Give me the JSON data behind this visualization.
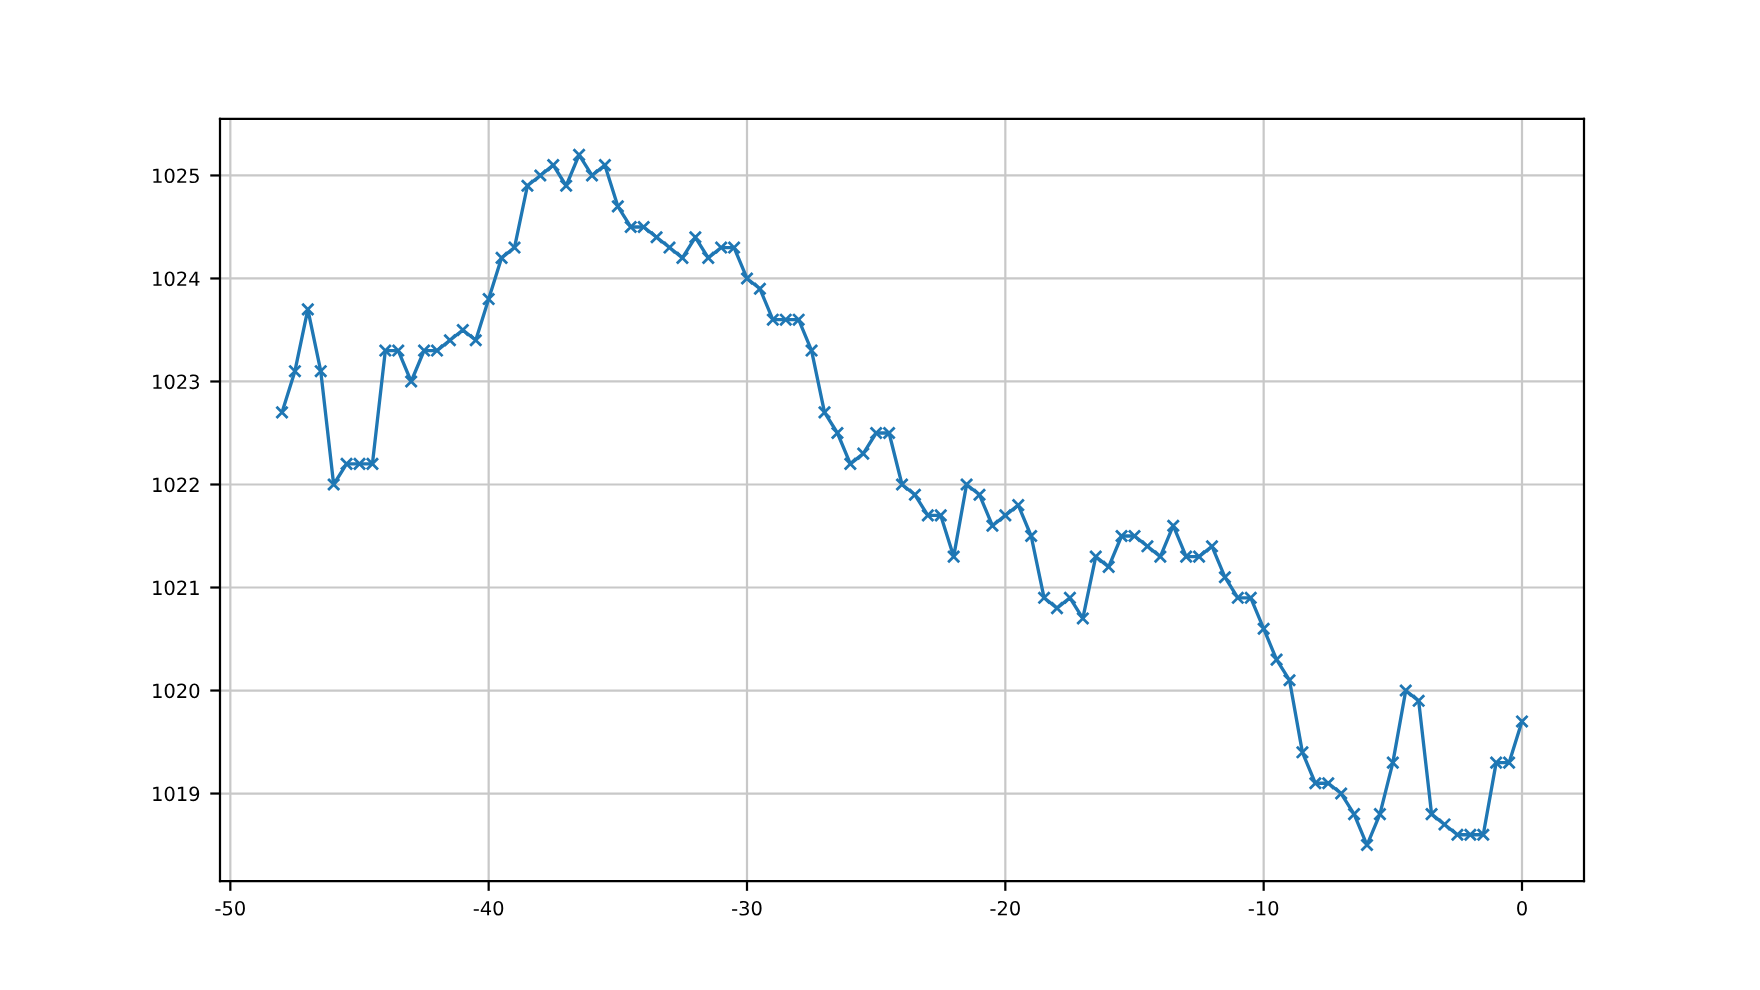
{
  "chart_data": {
    "type": "line",
    "x": [
      -48,
      -47.5,
      -47,
      -46.5,
      -46,
      -45.5,
      -45,
      -44.5,
      -44,
      -43.5,
      -43,
      -42.5,
      -42,
      -41.5,
      -41,
      -40.5,
      -40,
      -39.5,
      -39,
      -38.5,
      -38,
      -37.5,
      -37,
      -36.5,
      -36,
      -35.5,
      -35,
      -34.5,
      -34,
      -33.5,
      -33,
      -32.5,
      -32,
      -31.5,
      -31,
      -30.5,
      -30,
      -29.5,
      -29,
      -28.5,
      -28,
      -27.5,
      -27,
      -26.5,
      -26,
      -25.5,
      -25,
      -24.5,
      -24,
      -23.5,
      -23,
      -22.5,
      -22,
      -21.5,
      -21,
      -20.5,
      -20,
      -19.5,
      -19,
      -18.5,
      -18,
      -17.5,
      -17,
      -16.5,
      -16,
      -15.5,
      -15,
      -14.5,
      -14,
      -13.5,
      -13,
      -12.5,
      -12,
      -11.5,
      -11,
      -10.5,
      -10,
      -9.5,
      -9,
      -8.5,
      -8,
      -7.5,
      -7,
      -6.5,
      -6,
      -5.5,
      -5,
      -4.5,
      -4,
      -3.5,
      -3,
      -2.5,
      -2,
      -1.5,
      -1,
      -0.5,
      0
    ],
    "series": [
      {
        "color": "#1f77b4",
        "values": [
          1022.7,
          1023.1,
          1023.7,
          1023.1,
          1022.0,
          1022.2,
          1022.2,
          1022.2,
          1023.3,
          1023.3,
          1023.0,
          1023.3,
          1023.3,
          1023.4,
          1023.5,
          1023.4,
          1023.8,
          1024.2,
          1024.3,
          1024.9,
          1025.0,
          1025.1,
          1024.9,
          1025.2,
          1025.0,
          1025.1,
          1024.7,
          1024.5,
          1024.5,
          1024.4,
          1024.3,
          1024.2,
          1024.4,
          1024.2,
          1024.3,
          1024.3,
          1024.0,
          1023.9,
          1023.6,
          1023.6,
          1023.6,
          1023.3,
          1022.7,
          1022.5,
          1022.2,
          1022.3,
          1022.5,
          1022.5,
          1022.0,
          1021.9,
          1021.7,
          1021.7,
          1021.3,
          1022.0,
          1021.9,
          1021.6,
          1021.7,
          1021.8,
          1021.5,
          1020.9,
          1020.8,
          1020.9,
          1020.7,
          1021.3,
          1021.2,
          1021.5,
          1021.5,
          1021.4,
          1021.3,
          1021.6,
          1021.3,
          1021.3,
          1021.4,
          1021.1,
          1020.9,
          1020.9,
          1020.6,
          1020.3,
          1020.1,
          1019.4,
          1019.1,
          1019.1,
          1019.0,
          1018.8,
          1018.5,
          1018.8,
          1019.3,
          1020.0,
          1019.9,
          1018.8,
          1018.7,
          1018.6,
          1018.6,
          1018.6,
          1019.3,
          1019.3,
          1019.7
        ]
      }
    ],
    "xlim": [
      -50.4,
      2.4
    ],
    "xticks": [
      -50,
      -40,
      -30,
      -20,
      -10,
      0
    ],
    "ylim": [
      1018.15,
      1025.55
    ],
    "yticks": [
      1019,
      1020,
      1021,
      1022,
      1023,
      1024,
      1025
    ],
    "grid": true,
    "marker": "cross",
    "line_style": "solid",
    "legend": false
  }
}
